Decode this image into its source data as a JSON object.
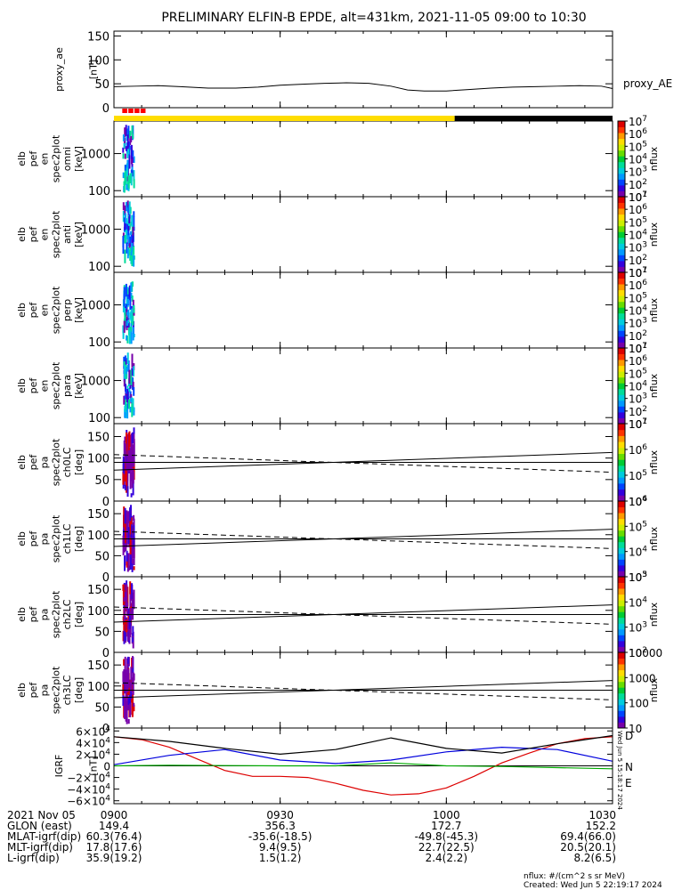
{
  "title": "PRELIMINARY ELFIN-B EPDE, alt=431km, 2021-11-05 09:00 to 10:30",
  "colors": {
    "sunlit_bar": "#ffdd00",
    "shadow_bar": "#000000",
    "science_marker": "#ff0000",
    "igrf_D": "#dd0000",
    "igrf_N": "#0000dd",
    "igrf_E": "#00aa00",
    "igrf_total": "#000000"
  },
  "time_axis": {
    "tick_labels": [
      "0900",
      "0930",
      "1000",
      "1030"
    ],
    "ticks_min": [
      0,
      30,
      60,
      90
    ],
    "range_min": [
      0,
      90
    ]
  },
  "footer": {
    "rows": [
      {
        "label": "2021 Nov 05",
        "values": [
          "0900",
          "0930",
          "1000",
          "1030"
        ]
      },
      {
        "label": "GLON (east)",
        "values": [
          "149.4",
          "356.3",
          "172.7",
          "152.2"
        ]
      },
      {
        "label": "MLAT-igrf(dip)",
        "values": [
          "60.3(76.4)",
          "-35.6(-18.5)",
          "-49.8(-45.3)",
          "69.4(66.0)"
        ]
      },
      {
        "label": "MLT-igrf(dip)",
        "values": [
          "17.8(17.6)",
          "9.4(9.5)",
          "22.7(22.5)",
          "20.5(20.1)"
        ]
      },
      {
        "label": "L-igrf(dip)",
        "values": [
          "35.9(19.2)",
          "1.5(1.2)",
          "2.4(2.2)",
          "8.2(6.5)"
        ]
      }
    ],
    "units_note": "nflux: #/(cm^2 s sr MeV)",
    "created": "Created: Wed Jun  5 22:19:17 2024",
    "side_stamp": "Wed Jun  5 15:18:17 2024"
  },
  "chart_data": [
    {
      "type": "line",
      "ylabel": [
        "proxy_ae",
        "[nT]"
      ],
      "yticks": [
        "150",
        "100",
        "50",
        "0"
      ],
      "ylim": [
        0,
        160
      ],
      "legend": "proxy_AE",
      "series": [
        {
          "name": "proxy_AE",
          "x_min": [
            0,
            4,
            8,
            12,
            17,
            22,
            26,
            30,
            34,
            38,
            42,
            46,
            50,
            53,
            56,
            60,
            64,
            68,
            72,
            76,
            80,
            84,
            88,
            90
          ],
          "values": [
            44,
            45,
            46,
            44,
            41,
            41,
            43,
            47,
            49,
            51,
            52,
            51,
            45,
            37,
            35,
            35,
            38,
            41,
            43,
            44,
            45,
            46,
            45,
            40
          ]
        }
      ]
    },
    {
      "type": "heatmap",
      "ylabel": [
        "elb",
        "pef",
        "en",
        "spec2plot",
        "omni",
        "[keV]"
      ],
      "yticks": [
        "1000",
        "100"
      ],
      "yscale": "log",
      "colorbar": {
        "label": "nflux",
        "ticks": [
          "10^1",
          "10^2",
          "10^3",
          "10^4",
          "10^5",
          "10^6",
          "10^7"
        ]
      },
      "data_interval_min": [
        1.5,
        3.5
      ]
    },
    {
      "type": "heatmap",
      "ylabel": [
        "elb",
        "pef",
        "en",
        "spec2plot",
        "anti",
        "[keV]"
      ],
      "yticks": [
        "1000",
        "100"
      ],
      "yscale": "log",
      "colorbar": {
        "label": "nflux",
        "ticks": [
          "10^1",
          "10^2",
          "10^3",
          "10^4",
          "10^5",
          "10^6",
          "10^7"
        ]
      },
      "data_interval_min": [
        1.5,
        3.5
      ]
    },
    {
      "type": "heatmap",
      "ylabel": [
        "elb",
        "pef",
        "en",
        "spec2plot",
        "perp",
        "[keV]"
      ],
      "yticks": [
        "1000",
        "100"
      ],
      "yscale": "log",
      "colorbar": {
        "label": "nflux",
        "ticks": [
          "10^1",
          "10^2",
          "10^3",
          "10^4",
          "10^5",
          "10^6",
          "10^7"
        ]
      },
      "data_interval_min": [
        1.5,
        3.5
      ]
    },
    {
      "type": "heatmap",
      "ylabel": [
        "elb",
        "pef",
        "en",
        "spec2plot",
        "para",
        "[keV]"
      ],
      "yticks": [
        "1000",
        "100"
      ],
      "yscale": "log",
      "colorbar": {
        "label": "nflux",
        "ticks": [
          "10^1",
          "10^2",
          "10^3",
          "10^4",
          "10^5",
          "10^6",
          "10^7"
        ]
      },
      "data_interval_min": [
        1.5,
        3.5
      ]
    },
    {
      "type": "heatmap",
      "ylabel": [
        "elb",
        "pef",
        "pa",
        "spec2plot",
        "ch0LC",
        "[deg]"
      ],
      "yticks": [
        "150",
        "100",
        "50",
        "0"
      ],
      "ylim": [
        0,
        180
      ],
      "colorbar": {
        "label": "nflux",
        "ticks": [
          "10^4",
          "10^5",
          "10^6",
          "10^7"
        ]
      },
      "loss_cone_lines": {
        "x_min": [
          0,
          90
        ],
        "solid_lower": [
          72,
          113
        ],
        "solid_upper": [
          90,
          90
        ],
        "dashed_upper": [
          108,
          67
        ],
        "dashed_lower": [
          90,
          90
        ]
      },
      "data_interval_min": [
        1.5,
        3.5
      ]
    },
    {
      "type": "heatmap",
      "ylabel": [
        "elb",
        "pef",
        "pa",
        "spec2plot",
        "ch1LC",
        "[deg]"
      ],
      "yticks": [
        "150",
        "100",
        "50",
        "0"
      ],
      "ylim": [
        0,
        180
      ],
      "colorbar": {
        "label": "nflux",
        "ticks": [
          "10^3",
          "10^4",
          "10^5",
          "10^6"
        ]
      },
      "loss_cone_lines": {
        "x_min": [
          0,
          90
        ],
        "solid_lower": [
          72,
          113
        ],
        "solid_upper": [
          90,
          90
        ],
        "dashed_upper": [
          108,
          67
        ],
        "dashed_lower": [
          90,
          90
        ]
      },
      "data_interval_min": [
        1.5,
        3.5
      ]
    },
    {
      "type": "heatmap",
      "ylabel": [
        "elb",
        "pef",
        "pa",
        "spec2plot",
        "ch2LC",
        "[deg]"
      ],
      "yticks": [
        "150",
        "100",
        "50",
        "0"
      ],
      "ylim": [
        0,
        180
      ],
      "colorbar": {
        "label": "nflux",
        "ticks": [
          "10^2",
          "10^3",
          "10^4",
          "10^5"
        ]
      },
      "loss_cone_lines": {
        "x_min": [
          0,
          90
        ],
        "solid_lower": [
          72,
          113
        ],
        "solid_upper": [
          90,
          90
        ],
        "dashed_upper": [
          108,
          67
        ],
        "dashed_lower": [
          90,
          90
        ]
      },
      "data_interval_min": [
        1.5,
        3.5
      ]
    },
    {
      "type": "heatmap",
      "ylabel": [
        "elb",
        "pef",
        "pa",
        "spec2plot",
        "ch3LC",
        "[deg]"
      ],
      "yticks": [
        "150",
        "100",
        "50",
        "0"
      ],
      "ylim": [
        0,
        180
      ],
      "colorbar": {
        "label": "nflux",
        "ticks": [
          "10000",
          "1000",
          "100",
          "10"
        ]
      },
      "loss_cone_lines": {
        "x_min": [
          0,
          90
        ],
        "solid_lower": [
          72,
          113
        ],
        "solid_upper": [
          90,
          90
        ],
        "dashed_upper": [
          108,
          67
        ],
        "dashed_lower": [
          90,
          90
        ]
      },
      "data_interval_min": [
        1.5,
        3.5
      ]
    },
    {
      "type": "line",
      "ylabel": [
        "IGRF",
        "[nT]"
      ],
      "yticks": [
        "6×10^4",
        "4×10^4",
        "2×10^4",
        "0",
        "−2×10^4",
        "−4×10^4",
        "−6×10^4"
      ],
      "ylim": [
        -65000,
        65000
      ],
      "series": [
        {
          "name": "D",
          "x_min": [
            0,
            5,
            10,
            15,
            20,
            25,
            30,
            35,
            40,
            45,
            50,
            55,
            60,
            65,
            70,
            75,
            80,
            85,
            90
          ],
          "values": [
            50000,
            45000,
            32000,
            12000,
            -8000,
            -18000,
            -18000,
            -20000,
            -30000,
            -42000,
            -50000,
            -48000,
            -38000,
            -18000,
            5000,
            22000,
            38000,
            47000,
            50000
          ]
        },
        {
          "name": "N",
          "x_min": [
            0,
            10,
            20,
            30,
            40,
            50,
            60,
            70,
            80,
            90
          ],
          "values": [
            2000,
            18000,
            28000,
            10000,
            4000,
            10000,
            24000,
            32000,
            28000,
            8000
          ]
        },
        {
          "name": "E",
          "x_min": [
            0,
            10,
            20,
            30,
            40,
            50,
            60,
            70,
            80,
            90
          ],
          "values": [
            0,
            1000,
            500,
            0,
            0,
            5000,
            0,
            -1000,
            -3000,
            -5000
          ]
        },
        {
          "name": "total",
          "x_min": [
            0,
            10,
            20,
            30,
            40,
            50,
            60,
            70,
            80,
            90
          ],
          "values": [
            50000,
            42000,
            30000,
            20000,
            28000,
            48000,
            30000,
            22000,
            38000,
            52000
          ]
        }
      ],
      "legend_letters": [
        "D",
        "N",
        "E"
      ]
    }
  ]
}
